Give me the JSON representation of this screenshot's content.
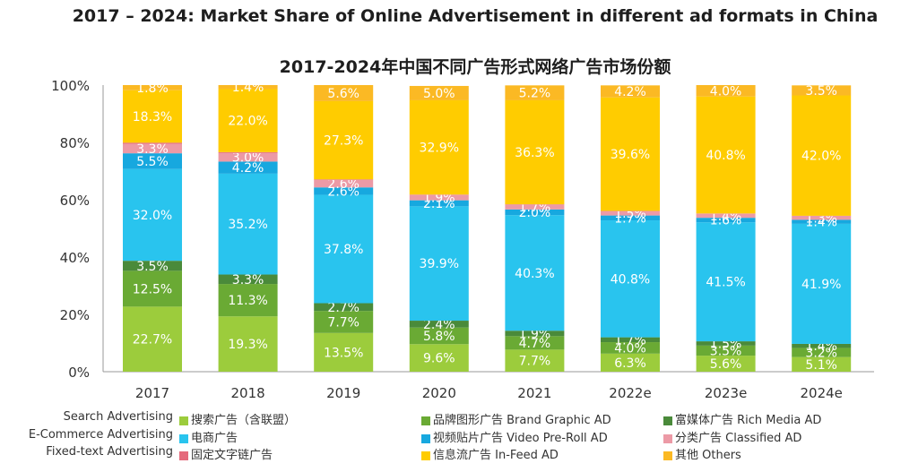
{
  "title_en": "2017 – 2024: Market Share of Online Advertisement in different ad formats in China",
  "title_cn": "2017-2024年中国不同广告形式网络广告市场份额",
  "colors": {
    "search": "#9ccc3c",
    "brand": "#6aaa34",
    "rich": "#4a8a3a",
    "ecommerce": "#29c4ee",
    "video": "#17a8df",
    "classified": "#ec9aa6",
    "fixed_text": "#e56a7c",
    "infeed": "#ffcc00",
    "others": "#fbb924"
  },
  "chart_data": {
    "type": "bar",
    "stacked": true,
    "categories": [
      "2017",
      "2018",
      "2019",
      "2020",
      "2021",
      "2022e",
      "2023e",
      "2024e"
    ],
    "y_ticks": [
      "0%",
      "20%",
      "40%",
      "60%",
      "80%",
      "100%"
    ],
    "ylim": [
      0,
      100
    ],
    "series": [
      {
        "key": "search",
        "name": "搜索广告（含联盟）",
        "values": [
          22.7,
          19.3,
          13.5,
          9.6,
          7.7,
          6.3,
          5.6,
          5.1
        ]
      },
      {
        "key": "brand",
        "name": "品牌图形广告",
        "values": [
          12.5,
          11.3,
          7.7,
          5.8,
          4.7,
          4.0,
          3.5,
          3.2
        ]
      },
      {
        "key": "rich",
        "name": "富媒体广告",
        "values": [
          3.5,
          3.3,
          2.7,
          2.4,
          1.9,
          1.7,
          1.5,
          1.4
        ]
      },
      {
        "key": "ecommerce",
        "name": "电商广告",
        "values": [
          32.0,
          35.2,
          37.8,
          39.9,
          40.3,
          40.8,
          41.5,
          41.9
        ]
      },
      {
        "key": "video",
        "name": "视频贴片广告",
        "values": [
          5.5,
          4.2,
          2.6,
          2.1,
          2.0,
          1.7,
          1.6,
          1.4
        ]
      },
      {
        "key": "classified",
        "name": "分类广告",
        "values": [
          3.3,
          3.0,
          2.6,
          1.9,
          1.7,
          1.5,
          1.4,
          1.3
        ]
      },
      {
        "key": "fixed_text",
        "name": "固定文字链广告",
        "values": [
          0.4,
          0.3,
          0.2,
          0.1,
          0.1,
          0.1,
          0.1,
          0.1
        ]
      },
      {
        "key": "infeed",
        "name": "信息流广告",
        "values": [
          18.3,
          22.0,
          27.3,
          32.9,
          36.3,
          39.6,
          40.8,
          42.0
        ]
      },
      {
        "key": "others",
        "name": "其他",
        "values": [
          1.8,
          1.4,
          5.6,
          5.0,
          5.2,
          4.2,
          4.0,
          3.5
        ]
      }
    ],
    "labels": [
      [
        "22.7%",
        "12.5%",
        "3.5%",
        "32.0%",
        "5.5%",
        "3.3%",
        "",
        "18.3%",
        "1.8%"
      ],
      [
        "19.3%",
        "11.3%",
        "3.3%",
        "35.2%",
        "4.2%",
        "3.0%",
        "",
        "22.0%",
        "1.4%"
      ],
      [
        "13.5%",
        "7.7%",
        "2.7%",
        "37.8%",
        "2.6%",
        "2.6%",
        "",
        "27.3%",
        "5.6%"
      ],
      [
        "9.6%",
        "5.8%",
        "2.4%",
        "39.9%",
        "2.1%",
        "1.9%",
        "",
        "32.9%",
        "5.0%"
      ],
      [
        "7.7%",
        "4.7%",
        "1.9%",
        "40.3%",
        "2.0%",
        "1.7%",
        "",
        "36.3%",
        "5.2%"
      ],
      [
        "6.3%",
        "4.0%",
        "1.7%",
        "40.8%",
        "1.7%",
        "1.5%",
        "",
        "39.6%",
        "4.2%"
      ],
      [
        "5.6%",
        "3.5%",
        "1.5%",
        "41.5%",
        "1.6%",
        "1.4%",
        "",
        "40.8%",
        "4.0%"
      ],
      [
        "5.1%",
        "3.2%",
        "1.4%",
        "41.9%",
        "1.4%",
        "1.3%",
        "",
        "42.0%",
        "3.5%"
      ]
    ]
  },
  "legend": {
    "left_en": [
      "Search Advertising",
      "E-Commerce Advertising",
      "Fixed-text Advertising"
    ],
    "rows": [
      [
        {
          "key": "search",
          "text": "搜索广告（含联盟）"
        },
        {
          "key": "brand",
          "text": "品牌图形广告 Brand Graphic AD"
        },
        {
          "key": "rich",
          "text": "富媒体广告   Rich Media AD"
        }
      ],
      [
        {
          "key": "ecommerce",
          "text": "电商广告"
        },
        {
          "key": "video",
          "text": "视频贴片广告 Video Pre-Roll AD"
        },
        {
          "key": "classified",
          "text": "分类广告   Classified AD"
        }
      ],
      [
        {
          "key": "fixed_text",
          "text": "固定文字链广告"
        },
        {
          "key": "infeed",
          "text": "信息流广告   In-Feed AD"
        },
        {
          "key": "others",
          "text": "其他   Others"
        }
      ]
    ]
  }
}
